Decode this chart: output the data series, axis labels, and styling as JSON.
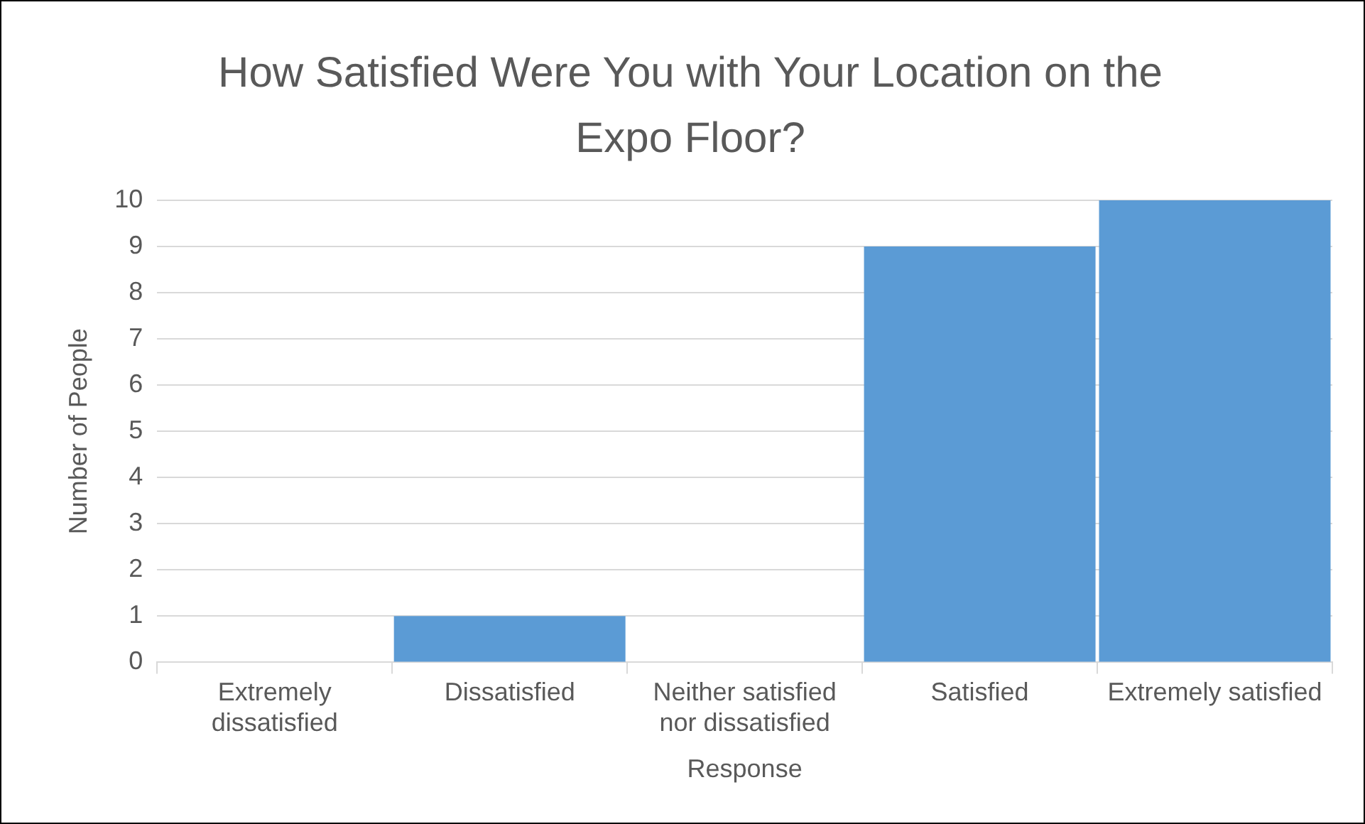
{
  "chart_data": {
    "type": "bar",
    "title": "How Satisfied Were You with Your Location on the Expo Floor?",
    "xlabel": "Response",
    "ylabel": "Number of People",
    "categories": [
      "Extremely dissatisfied",
      "Dissatisfied",
      "Neither satisfied nor dissatisfied",
      "Satisfied",
      "Extremely satisfied"
    ],
    "values": [
      0,
      1,
      0,
      9,
      10
    ],
    "color": "#5b9bd5",
    "ylim": [
      0,
      10
    ],
    "yticks": [
      0,
      1,
      2,
      3,
      4,
      5,
      6,
      7,
      8,
      9,
      10
    ],
    "grid": "y",
    "legend": false
  }
}
